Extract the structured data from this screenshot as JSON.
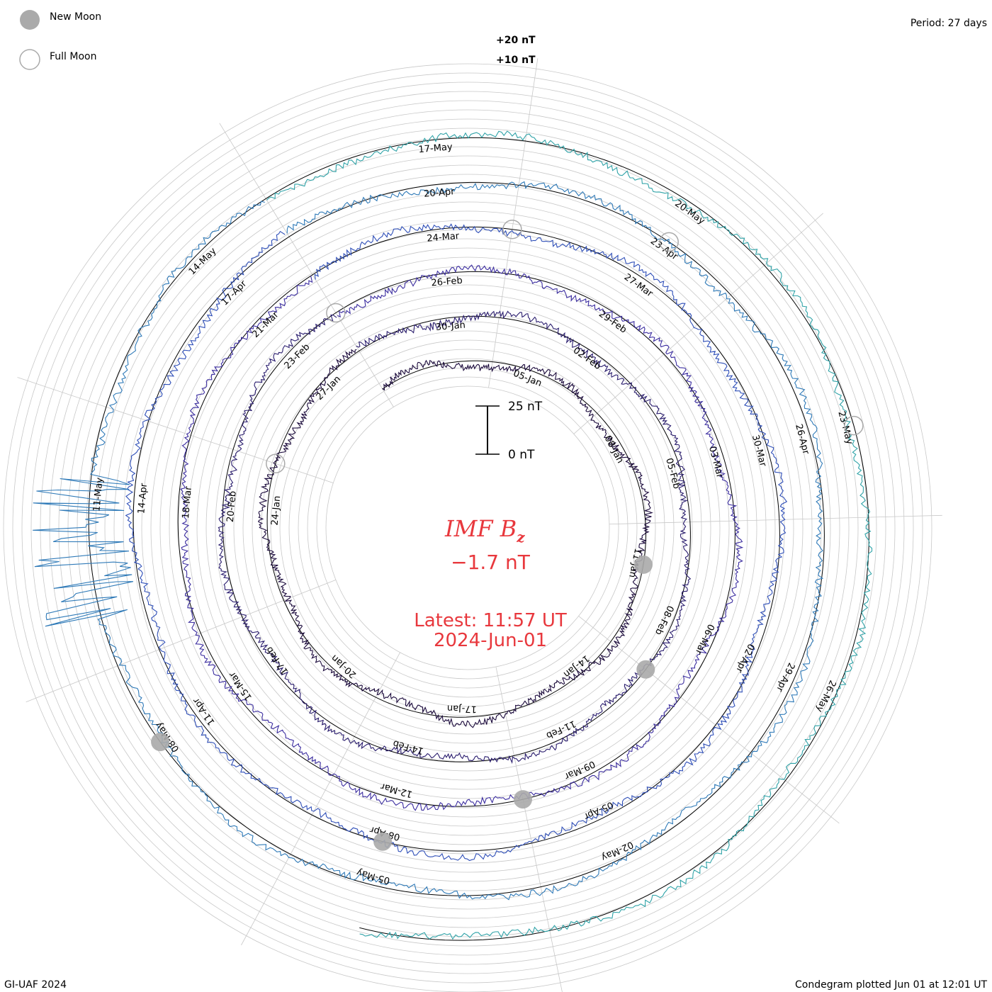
{
  "legend": {
    "new_moon_label": "New Moon",
    "full_moon_label": "Full Moon",
    "new_moon_color": "#aaaaaa",
    "full_moon_color": "#aaaaaa"
  },
  "period_label": "Period: 27 days",
  "footer_left": "GI-UAF 2024",
  "footer_right": "Condegram plotted Jun 01 at 12:01 UT",
  "center": {
    "title_main": "IMF B",
    "title_sub": "z",
    "value": "−1.7 nT",
    "latest_line1": "Latest: 11:57 UT",
    "latest_line2": "2024-Jun-01"
  },
  "scale_bar": {
    "top_label": "25 nT",
    "bottom_label": "0 nT"
  },
  "ring_scale": {
    "plus20": "+20 nT",
    "plus10": "+10 nT"
  },
  "chart_data": {
    "type": "line",
    "subtype": "condegram-spiral",
    "period_days": 27,
    "start_date": "2024-Jan-01",
    "end_date": "2024-Jun-01",
    "quantity": "IMF Bz (nT)",
    "latest_value_nT": -1.7,
    "date_labels": [
      "05-Jan",
      "08-Jan",
      "11-Jan",
      "14-Jan",
      "17-Jan",
      "20-Jan",
      "24-Jan",
      "27-Jan",
      "30-Jan",
      "02-Feb",
      "05-Feb",
      "08-Feb",
      "11-Feb",
      "14-Feb",
      "17-Feb",
      "20-Feb",
      "23-Feb",
      "26-Feb",
      "29-Feb",
      "03-Mar",
      "06-Mar",
      "09-Mar",
      "12-Mar",
      "15-Mar",
      "18-Mar",
      "21-Mar",
      "24-Mar",
      "27-Mar",
      "30-Mar",
      "02-Apr",
      "05-Apr",
      "08-Apr",
      "11-Apr",
      "14-Apr",
      "17-Apr",
      "20-Apr",
      "23-Apr",
      "26-Apr",
      "29-Apr",
      "02-May",
      "05-May",
      "08-May",
      "11-May",
      "14-May",
      "17-May",
      "20-May",
      "23-May",
      "26-May"
    ],
    "colors": [
      "#1b0a3c",
      "#2a1d6e",
      "#3c2ea0",
      "#2f4fb8",
      "#2f7ab8",
      "#30a3a8",
      "#35c48a",
      "#5ec03e",
      "#9ec42c",
      "#b8a82a",
      "#c07e1a",
      "#c05a12",
      "#c02a12"
    ],
    "new_moons": [
      "2024-Jan-11",
      "2024-Feb-09",
      "2024-Mar-10",
      "2024-Apr-08",
      "2024-May-08"
    ],
    "full_moons": [
      "2024-Jan-25",
      "2024-Feb-24",
      "2024-Mar-25",
      "2024-Apr-23",
      "2024-May-23"
    ],
    "notable_events": [
      {
        "date": "2024-May-10",
        "description": "large excursions"
      }
    ]
  }
}
